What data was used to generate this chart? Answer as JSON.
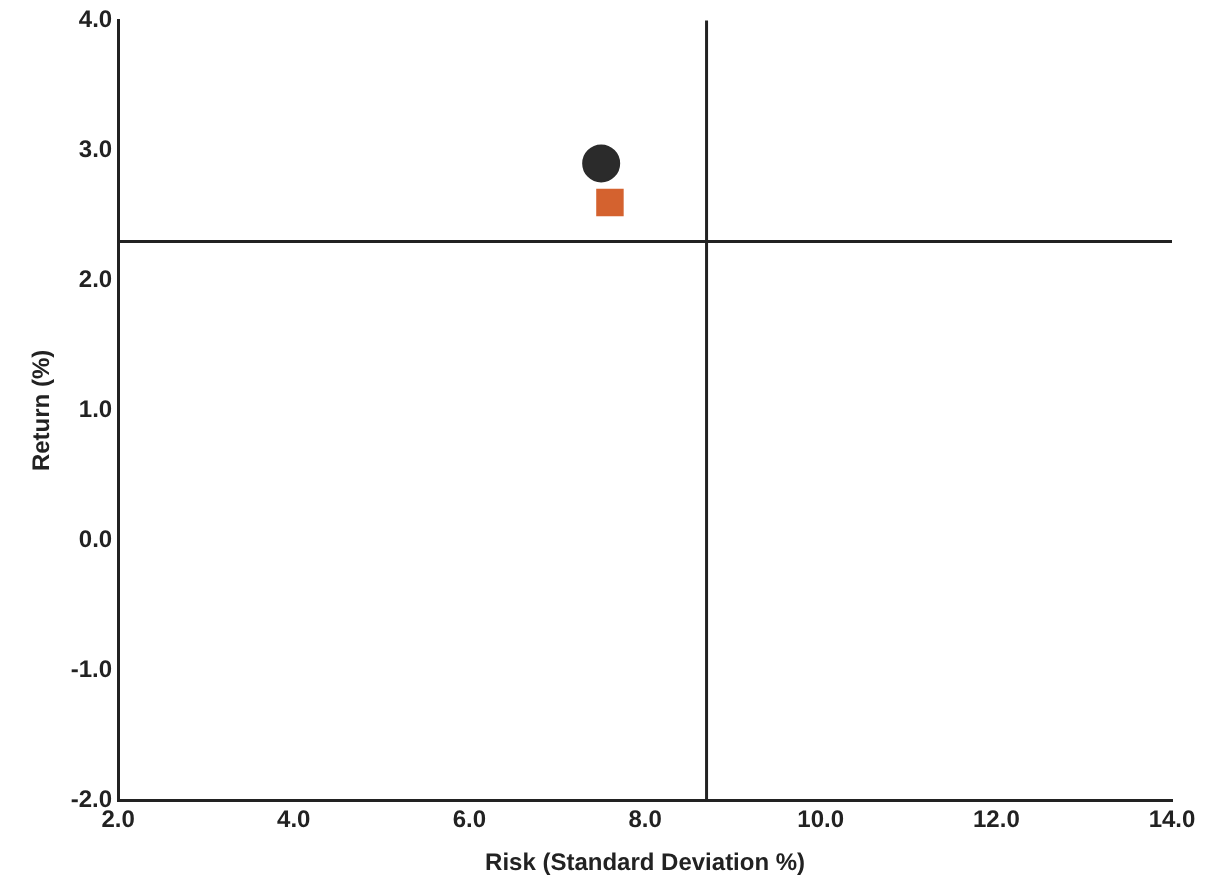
{
  "chart_data": {
    "type": "scatter",
    "xlabel": "Risk (Standard Deviation %)",
    "ylabel": "Return (%)",
    "series": [
      {
        "color": "#2b2b2b",
        "marker": "circle",
        "x": [
          7.5
        ],
        "values": [
          2.9
        ]
      },
      {
        "color": "#d4622f",
        "marker": "square",
        "x": [
          7.6
        ],
        "values": [
          2.6
        ]
      }
    ],
    "xlim": [
      2,
      14
    ],
    "xticks": [
      {
        "value": 2,
        "label": "2.0"
      },
      {
        "value": 4,
        "label": "4.0"
      },
      {
        "value": 6,
        "label": "6.0"
      },
      {
        "value": 8,
        "label": "8.0"
      },
      {
        "value": 10,
        "label": "10.0"
      },
      {
        "value": 12,
        "label": "12.0"
      },
      {
        "value": 14,
        "label": "14.0"
      }
    ],
    "ylim": [
      -2,
      4
    ],
    "yticks": [
      {
        "value": -2,
        "label": "-2.0"
      },
      {
        "value": -1,
        "label": "-1.0"
      },
      {
        "value": 0,
        "label": "0.0"
      },
      {
        "value": 1,
        "label": "1.0"
      },
      {
        "value": 2,
        "label": "2.0"
      },
      {
        "value": 3,
        "label": "3.0"
      },
      {
        "value": 4,
        "label": "4.0"
      }
    ],
    "ref_lines": [
      {
        "axis": "x",
        "value": 8.7,
        "color": "#222222"
      },
      {
        "axis": "y",
        "value": 2.3,
        "color": "#222222"
      }
    ],
    "grid": false,
    "legend": false
  }
}
